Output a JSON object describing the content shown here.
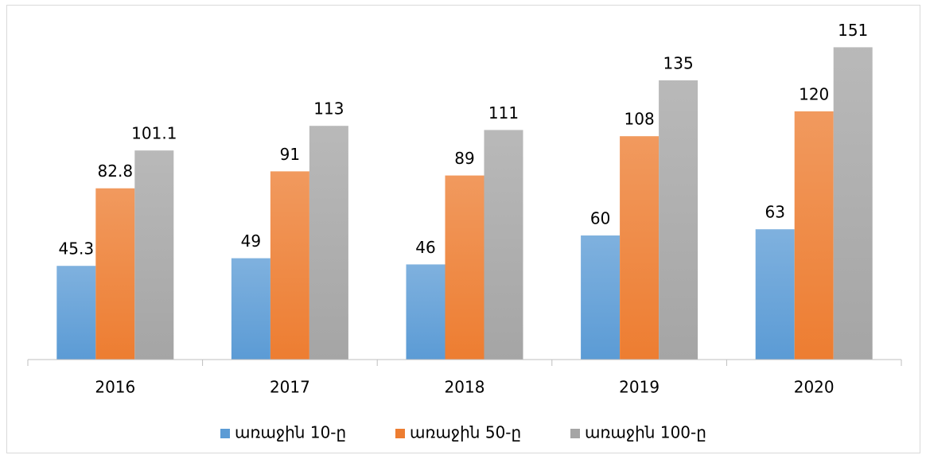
{
  "chart_data": {
    "type": "bar",
    "categories": [
      "2016",
      "2017",
      "2018",
      "2019",
      "2020"
    ],
    "series": [
      {
        "name": "առաջին 10-ը",
        "color": "#5b9bd5",
        "values": [
          45.3,
          49,
          46,
          60,
          63
        ]
      },
      {
        "name": "առաջին 50-ը",
        "color": "#ed7d31",
        "values": [
          82.8,
          91,
          89,
          108,
          120
        ]
      },
      {
        "name": "առաջին 100-ը",
        "color": "#a5a5a5",
        "values": [
          101.1,
          113,
          111,
          135,
          151
        ]
      }
    ],
    "ylim": [
      0,
      160
    ],
    "legend": "bottom"
  }
}
